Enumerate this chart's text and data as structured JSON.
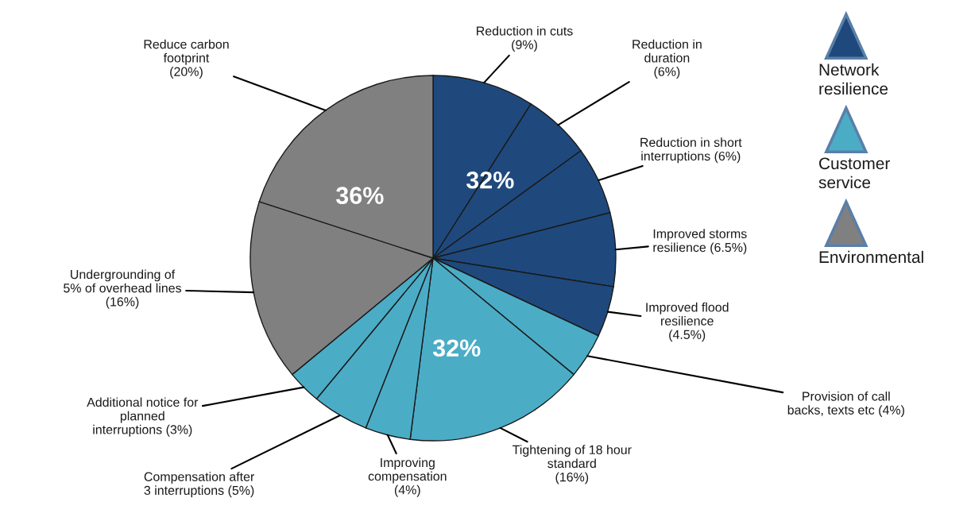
{
  "chart_data": {
    "type": "pie",
    "categories": [
      "Reduction in cuts\n(9%)",
      "Reduction in\nduration\n(6%)",
      "Reduction in short\ninterruptions (6%)",
      "Improved storms\nresilience (6.5%)",
      "Improved flood\nresilience\n(4.5%)",
      "Provision of call\nbacks, texts etc (4%)",
      "Tightening of 18 hour\nstandard\n(16%)",
      "Improving\ncompensation\n(4%)",
      "Compensation after\n3 interruptions (5%)",
      "Additional notice for\nplanned\ninterruptions (3%)",
      "Undergrounding of\n5% of overhead lines\n(16%)",
      "Reduce carbon\nfootprint\n(20%)"
    ],
    "values": [
      9,
      6,
      6,
      6.5,
      4.5,
      4,
      16,
      4,
      5,
      3,
      16,
      20
    ],
    "colors": [
      "#1f497d",
      "#1f497d",
      "#1f497d",
      "#1f497d",
      "#1f497d",
      "#4bacc6",
      "#4bacc6",
      "#4bacc6",
      "#4bacc6",
      "#4bacc6",
      "#808080",
      "#808080"
    ],
    "annotations": [
      "32%",
      "32%",
      "36%",
      "Network\nresilience",
      "Customer\nservice",
      "Environmental"
    ]
  }
}
